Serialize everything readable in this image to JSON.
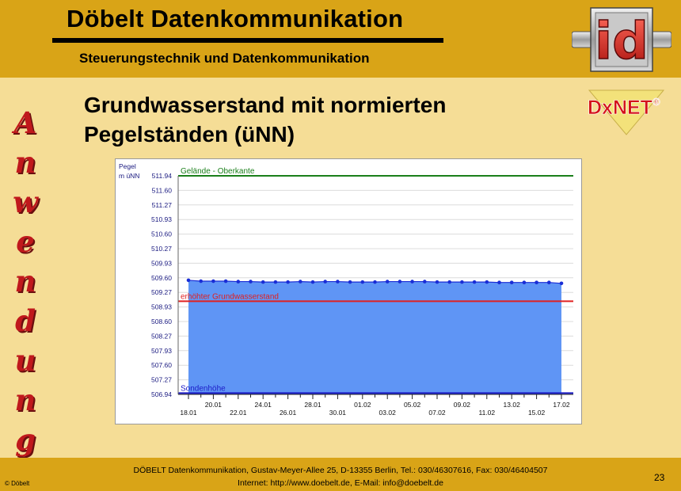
{
  "header": {
    "title": "Döbelt Datenkommunikation",
    "subtitle": "Steuerungstechnik und Datenkommunikation",
    "logo_text": "id"
  },
  "dxnet_logo": {
    "text": "DxNET",
    "mark": "®"
  },
  "sidebar": {
    "letters": [
      "A",
      "n",
      "w",
      "e",
      "n",
      "d",
      "u",
      "n",
      "g"
    ]
  },
  "slide": {
    "title_line1": "Grundwasserstand mit normierten",
    "title_line2": "Pegelständen (üNN)"
  },
  "chart_data": {
    "type": "area",
    "ylabel_line1": "Pegel",
    "ylabel_line2": "m üNN",
    "ylim": [
      506.94,
      511.94
    ],
    "y_ticks": [
      "511.94",
      "511.60",
      "511.27",
      "510.93",
      "510.60",
      "510.27",
      "509.93",
      "509.60",
      "509.27",
      "508.93",
      "508.60",
      "508.27",
      "507.93",
      "507.60",
      "507.27",
      "506.94"
    ],
    "x_labels_lower": [
      "18.01",
      "22.01",
      "26.01",
      "30.01",
      "03.02",
      "07.02",
      "11.02",
      "15.02"
    ],
    "x_labels_upper": [
      "20.01",
      "24.01",
      "28.01",
      "01.02",
      "05.02",
      "09.02",
      "13.02",
      "17.02"
    ],
    "x_start": "18.01",
    "x_end": "17.02",
    "series": [
      {
        "name": "",
        "values": [
          509.55,
          509.53,
          509.53,
          509.53,
          509.52,
          509.52,
          509.51,
          509.51,
          509.51,
          509.52,
          509.51,
          509.52,
          509.52,
          509.51,
          509.51,
          509.51,
          509.52,
          509.52,
          509.52,
          509.52,
          509.51,
          509.51,
          509.51,
          509.51,
          509.51,
          509.5,
          509.5,
          509.5,
          509.5,
          509.5,
          509.48
        ]
      }
    ],
    "reference_lines": [
      {
        "label": "Gelände - Oberkante",
        "value": 511.94,
        "color": "#1a7f1a"
      },
      {
        "label": "erhöhter Grundwasserstand",
        "value": 509.07,
        "color": "#e02020"
      },
      {
        "label": "Sondenhöhe",
        "value": 506.97,
        "color": "#1c1cc8"
      }
    ],
    "colors": {
      "area": "#5f95f5",
      "line": "#1a2dd6",
      "grid": "#dcdcdc"
    },
    "grid": true
  },
  "footer": {
    "line1": "DÖBELT Datenkommunikation, Gustav-Meyer-Allee 25, D-13355 Berlin, Tel.: 030/46307616, Fax: 030/46404507",
    "line2": "Internet: http://www.doebelt.de, E-Mail: info@doebelt.de",
    "left_label": "© Döbelt",
    "page_number": "23"
  }
}
